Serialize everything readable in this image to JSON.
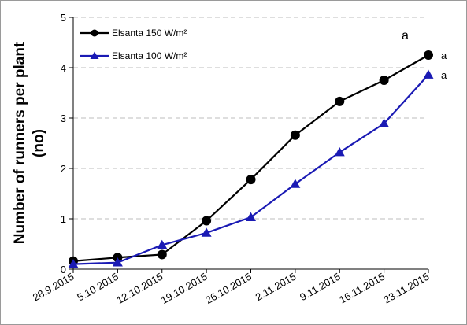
{
  "chart_data": {
    "type": "line",
    "title": "",
    "xlabel": "",
    "ylabel": "Number of runners per plant (no)",
    "ylabel_lines": [
      "Number of runners per plant",
      "(no)"
    ],
    "categories": [
      "28.9.2015",
      "5.10.2015",
      "12.10.2015",
      "19.10.2015",
      "26.10.2015",
      "2.11.2015",
      "9.11.2015",
      "16.11.2015",
      "23.11.2015"
    ],
    "ylim": [
      0,
      5
    ],
    "yticks": [
      0,
      1,
      2,
      3,
      4,
      5
    ],
    "grid": true,
    "legend_position": "top-left",
    "series": [
      {
        "name": "Elsanta 150 W/m²",
        "color": "#000000",
        "marker": "circle",
        "values": [
          0.16,
          0.23,
          0.29,
          0.96,
          1.78,
          2.66,
          3.33,
          3.75,
          4.25
        ]
      },
      {
        "name": "Elsanta 100 W/m²",
        "color": "#1a1ab4",
        "marker": "triangle",
        "values": [
          0.1,
          0.13,
          0.48,
          0.72,
          1.03,
          1.69,
          2.32,
          2.89,
          3.86
        ]
      }
    ],
    "annotations": [
      {
        "text": "a",
        "kind": "header"
      },
      {
        "text": "a",
        "series": 0,
        "index": 8
      },
      {
        "text": "a",
        "series": 1,
        "index": 8
      }
    ]
  }
}
